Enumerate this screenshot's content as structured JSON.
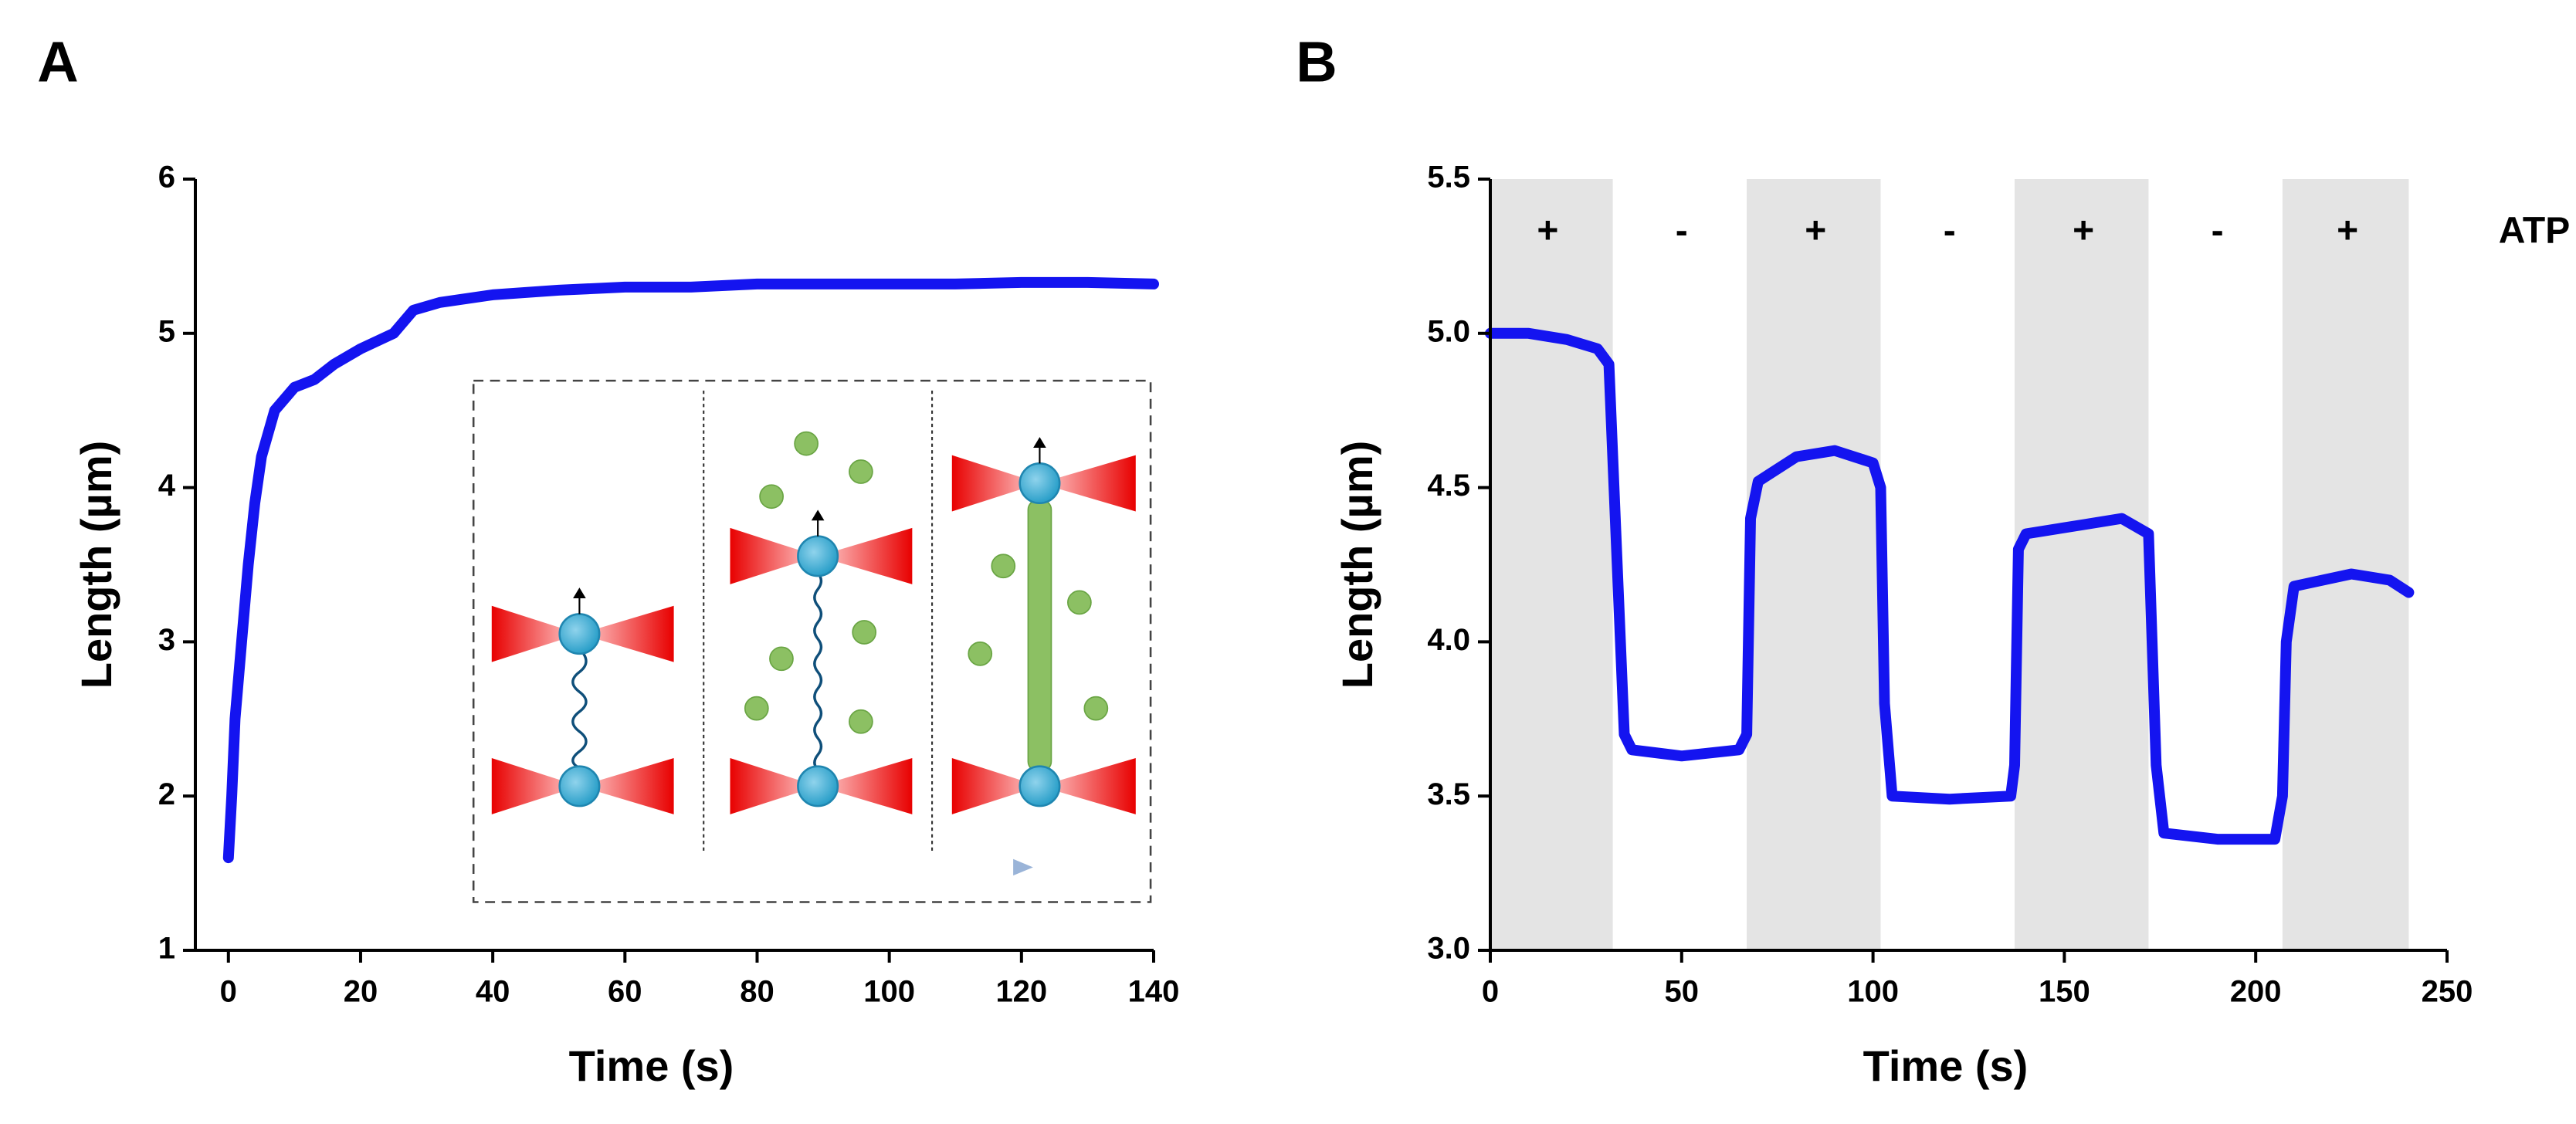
{
  "chart_data": [
    {
      "type": "line",
      "panel": "A",
      "xlabel": "Time (s)",
      "ylabel": "Length (µm)",
      "xlim": [
        -5,
        140
      ],
      "ylim": [
        1,
        6
      ],
      "xticks": [
        0,
        20,
        40,
        60,
        80,
        100,
        120,
        140
      ],
      "yticks": [
        1,
        2,
        3,
        4,
        5,
        6
      ],
      "series": [
        {
          "color": "#1414f0",
          "x": [
            0,
            0.5,
            1,
            2,
            3,
            4,
            5,
            7,
            10,
            13,
            16,
            20,
            25,
            28,
            32,
            40,
            50,
            60,
            70,
            80,
            90,
            100,
            110,
            120,
            130,
            140
          ],
          "values": [
            1.6,
            2.0,
            2.5,
            3.0,
            3.5,
            3.9,
            4.2,
            4.5,
            4.65,
            4.7,
            4.8,
            4.9,
            5.0,
            5.15,
            5.2,
            5.25,
            5.28,
            5.3,
            5.3,
            5.32,
            5.32,
            5.32,
            5.32,
            5.33,
            5.33,
            5.32
          ]
        }
      ]
    },
    {
      "type": "line",
      "panel": "B",
      "xlabel": "Time (s)",
      "ylabel": "Length (µm)",
      "xlim": [
        0,
        250
      ],
      "ylim": [
        3,
        5.5
      ],
      "xticks": [
        0,
        50,
        100,
        150,
        200,
        250
      ],
      "yticks": [
        {
          "value": 3,
          "label": "3.0"
        },
        {
          "value": 3.5,
          "label": "3.5"
        },
        {
          "value": 4,
          "label": "4.0"
        },
        {
          "value": 4.5,
          "label": "4.5"
        },
        {
          "value": 5,
          "label": "5.0"
        },
        {
          "value": 5.5,
          "label": "5.5"
        }
      ],
      "shaded_regions": [
        [
          0,
          32
        ],
        [
          67,
          102
        ],
        [
          137,
          172
        ],
        [
          207,
          240
        ]
      ],
      "shade_color": "#e4e4e4",
      "annotations": [
        {
          "x": 15,
          "text": "+"
        },
        {
          "x": 50,
          "text": "-"
        },
        {
          "x": 85,
          "text": "+"
        },
        {
          "x": 120,
          "text": "-"
        },
        {
          "x": 155,
          "text": "+"
        },
        {
          "x": 190,
          "text": "-"
        },
        {
          "x": 224,
          "text": "+"
        }
      ],
      "annotation_label": "ATP",
      "series": [
        {
          "color": "#1414f0",
          "x": [
            0,
            10,
            20,
            28,
            31,
            33,
            35,
            37,
            50,
            65,
            67,
            68,
            70,
            80,
            90,
            100,
            102,
            103,
            105,
            120,
            136,
            137,
            138,
            140,
            155,
            165,
            172,
            174,
            176,
            190,
            205,
            207,
            208,
            210,
            225,
            235,
            240
          ],
          "values": [
            5.0,
            5.0,
            4.98,
            4.95,
            4.9,
            4.3,
            3.7,
            3.65,
            3.63,
            3.65,
            3.7,
            4.4,
            4.52,
            4.6,
            4.62,
            4.58,
            4.5,
            3.8,
            3.5,
            3.49,
            3.5,
            3.6,
            4.3,
            4.35,
            4.38,
            4.4,
            4.35,
            3.6,
            3.38,
            3.36,
            3.36,
            3.5,
            4.0,
            4.18,
            4.22,
            4.2,
            4.16
          ]
        }
      ]
    }
  ]
}
